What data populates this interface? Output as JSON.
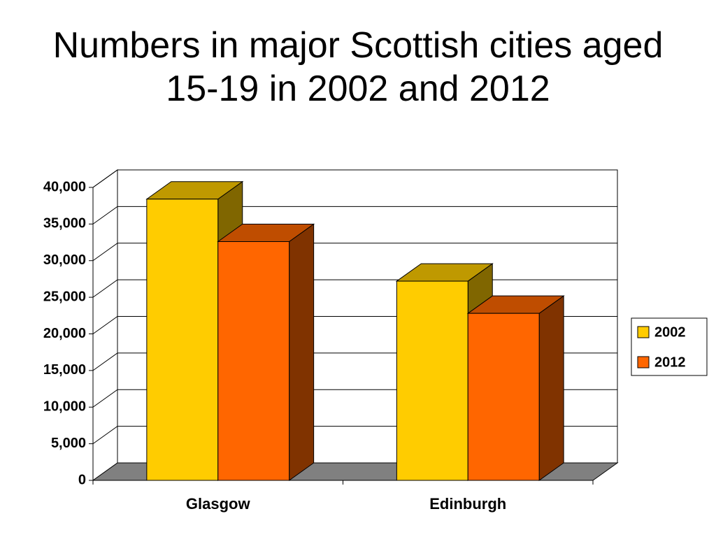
{
  "chart_data": {
    "type": "bar3d",
    "title": "Numbers in major Scottish cities aged 15-19 in 2002 and 2012",
    "categories": [
      "Glasgow",
      "Edinburgh"
    ],
    "series": [
      {
        "name": "2002",
        "color": "#ffcc00",
        "values": [
          38400,
          27200
        ]
      },
      {
        "name": "2012",
        "color": "#ff6600",
        "values": [
          32600,
          22800
        ]
      }
    ],
    "ylim": [
      0,
      40000
    ],
    "yticks": [
      0,
      {
        "value": 5000,
        "label": "5,000"
      },
      {
        "value": 10000,
        "label": "10,000"
      },
      {
        "value": 15000,
        "label": "15,000"
      },
      {
        "value": 20000,
        "label": "20,000"
      },
      {
        "value": 25000,
        "label": "25,000"
      },
      {
        "value": 30000,
        "label": "30,000"
      },
      {
        "value": 35000,
        "label": "35,000"
      },
      {
        "value": 40000,
        "label": "40,000"
      }
    ],
    "grid": true,
    "legend": "right"
  }
}
